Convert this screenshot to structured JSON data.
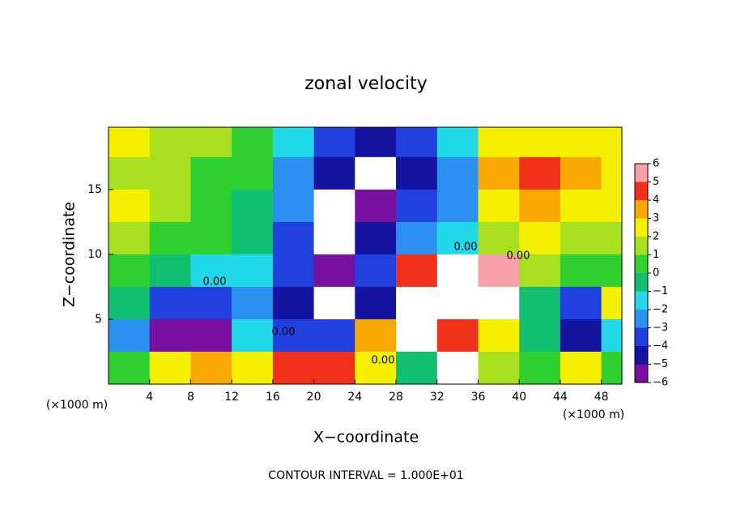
{
  "chart_data": {
    "type": "heatmap",
    "title": "zonal velocity",
    "x_label": "X−coordinate",
    "y_label": "Z−coordinate",
    "x_unit_left": "(×1000 m)",
    "x_unit_right": "(×1000 m)",
    "footnote": "CONTOUR INTERVAL = 1.000E+01",
    "contour_labels": [
      "0.00",
      "0.00",
      "0.00",
      "0.00",
      "0.00"
    ],
    "xlim": [
      0,
      50
    ],
    "ylim": [
      0,
      19.8
    ],
    "xticks": [
      4,
      8,
      12,
      16,
      20,
      24,
      28,
      32,
      36,
      40,
      44,
      48
    ],
    "yticks": [
      5,
      10,
      15
    ],
    "x_edges": [
      0,
      4,
      8,
      12,
      16,
      20,
      24,
      28,
      32,
      36,
      40,
      44,
      48,
      50
    ],
    "y_edges": [
      19.8,
      17.5,
      15,
      12.5,
      10,
      7.5,
      5,
      2.5,
      0
    ],
    "z": [
      [
        3,
        2,
        2,
        1,
        -1,
        -3,
        -4,
        -3,
        -1,
        3,
        3,
        3,
        3
      ],
      [
        2,
        2,
        1,
        1,
        -2,
        -4,
        -7,
        -4,
        -2,
        4,
        5,
        4,
        3
      ],
      [
        3,
        2,
        1,
        0,
        -2,
        -7,
        -5,
        -3,
        -2,
        3,
        4,
        3,
        3
      ],
      [
        2,
        1,
        1,
        0,
        -3,
        -7,
        -4,
        -2,
        -1,
        2,
        3,
        2,
        2
      ],
      [
        1,
        0,
        -1,
        -1,
        -3,
        -5,
        -3,
        5,
        7,
        6,
        2,
        1,
        1
      ],
      [
        0,
        -3,
        -3,
        -2,
        -4,
        -7,
        -4,
        7,
        7,
        7,
        0,
        -3,
        3
      ],
      [
        -2,
        -6,
        -5,
        -1,
        -3,
        -3,
        4,
        7,
        5,
        3,
        0,
        -4,
        -1
      ],
      [
        1,
        3,
        4,
        3,
        5,
        5,
        3,
        0,
        7,
        2,
        1,
        3,
        1
      ]
    ],
    "colorbar": {
      "ticks": [
        {
          "value": -6,
          "label": "−6"
        },
        {
          "value": -5,
          "label": "−5"
        },
        {
          "value": -4,
          "label": "−4"
        },
        {
          "value": -3,
          "label": "−3"
        },
        {
          "value": -2,
          "label": "−2"
        },
        {
          "value": -1,
          "label": "−1"
        },
        0,
        1,
        2,
        3,
        4,
        5,
        6
      ],
      "colors": [
        "#7a10a0",
        "#1414a0",
        "#2040e0",
        "#2c90f0",
        "#20d8e8",
        "#10c070",
        "#30d030",
        "#a8e020",
        "#f4f000",
        "#f8a800",
        "#f03018",
        "#f7a0a8"
      ],
      "out_of_range_color": "#ffffff"
    }
  }
}
